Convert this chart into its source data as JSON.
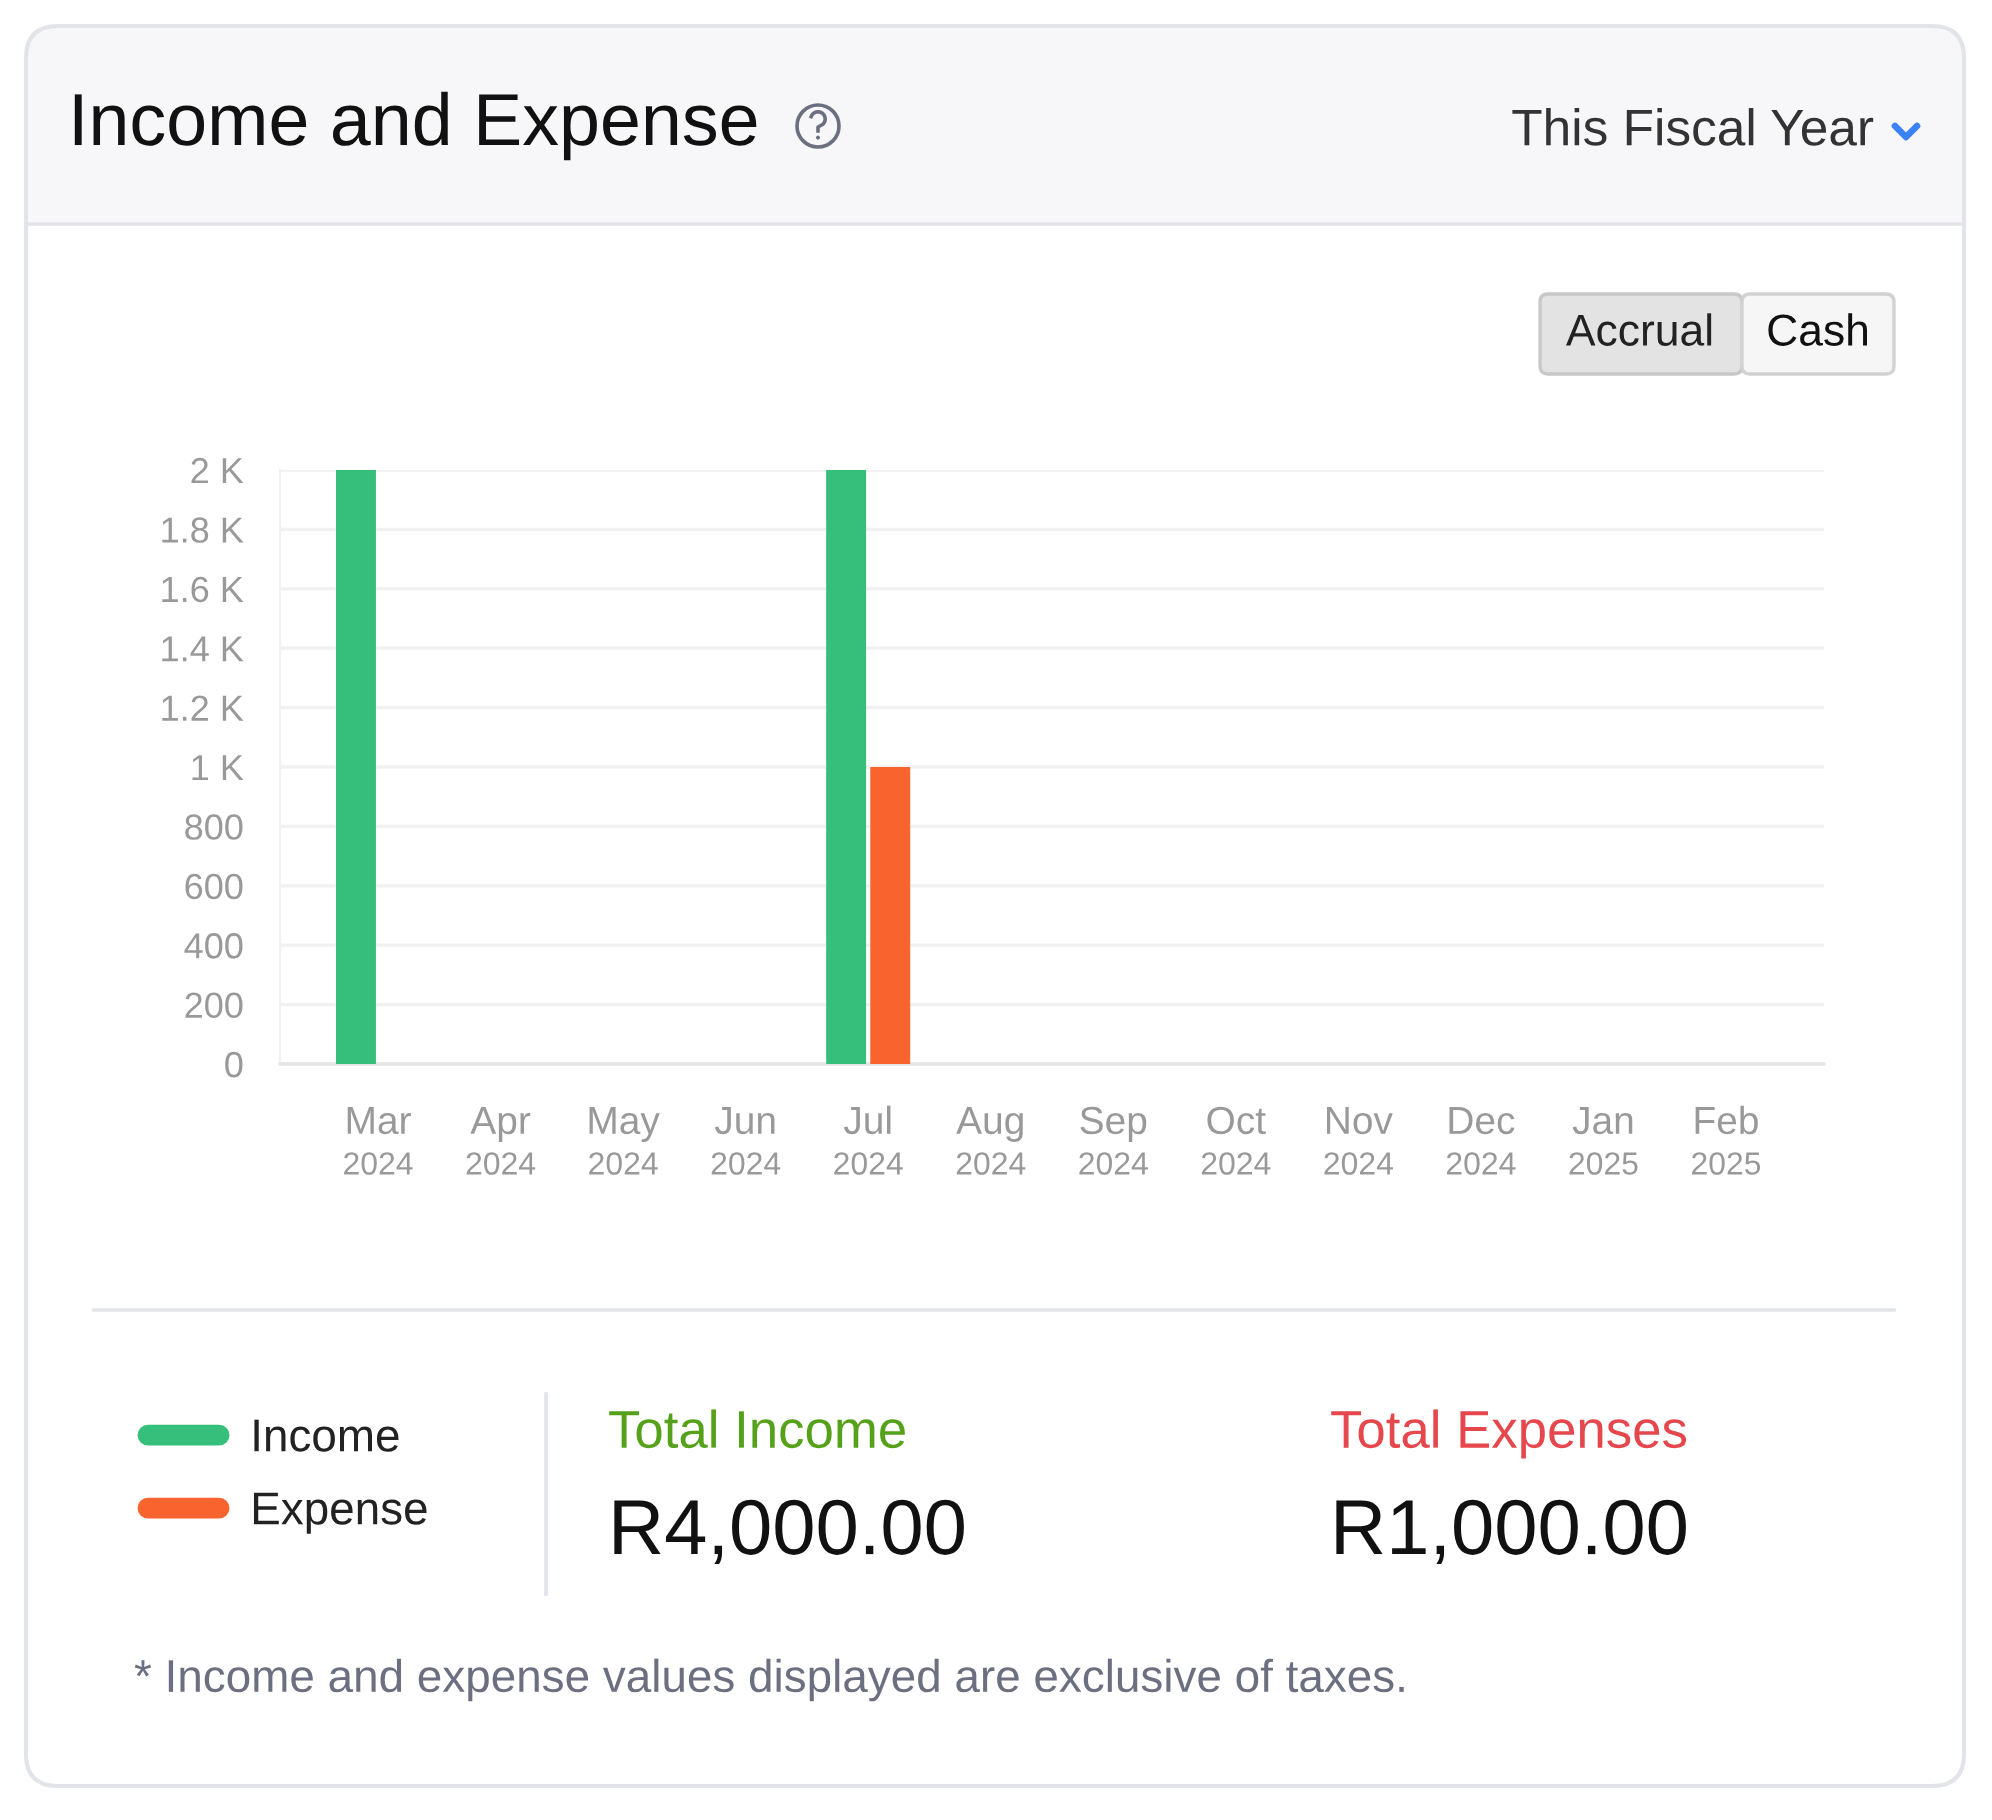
{
  "chart_data": {
    "type": "bar",
    "title": "Income and Expense",
    "categories": [
      "Mar\n2024",
      "Apr\n2024",
      "May\n2024",
      "Jun\n2024",
      "Jul\n2024",
      "Aug\n2024",
      "Sep\n2024",
      "Oct\n2024",
      "Nov\n2024",
      "Dec\n2024",
      "Jan\n2025",
      "Feb\n2025"
    ],
    "series": [
      {
        "name": "Income",
        "color": "#36bf7a",
        "values": [
          2000,
          null,
          null,
          null,
          2000,
          null,
          null,
          null,
          null,
          null,
          null,
          null
        ]
      },
      {
        "name": "Expense",
        "color": "#f8632e",
        "values": [
          null,
          null,
          null,
          null,
          1000,
          null,
          null,
          null,
          null,
          null,
          null,
          null
        ]
      }
    ],
    "ylim": [
      0,
      2000
    ],
    "yticks": [
      0,
      200,
      400,
      600,
      800,
      {
        "value": 1000,
        "label": "1 K"
      },
      {
        "value": 1200,
        "label": "1.2 K"
      },
      {
        "value": 1400,
        "label": "1.4 K"
      },
      {
        "value": 1600,
        "label": "1.6 K"
      },
      {
        "value": 1800,
        "label": "1.8 K"
      },
      {
        "value": 2000,
        "label": "2 K"
      }
    ],
    "grid": "y",
    "legend": "bottom left",
    "annotations": [
      "This Fiscal Year",
      "Accrual",
      "Cash",
      "Total Income",
      "R4,000.00",
      "Total Expenses",
      "R1,000.00",
      "* Income and expense values displayed are exclusive of taxes."
    ]
  }
}
